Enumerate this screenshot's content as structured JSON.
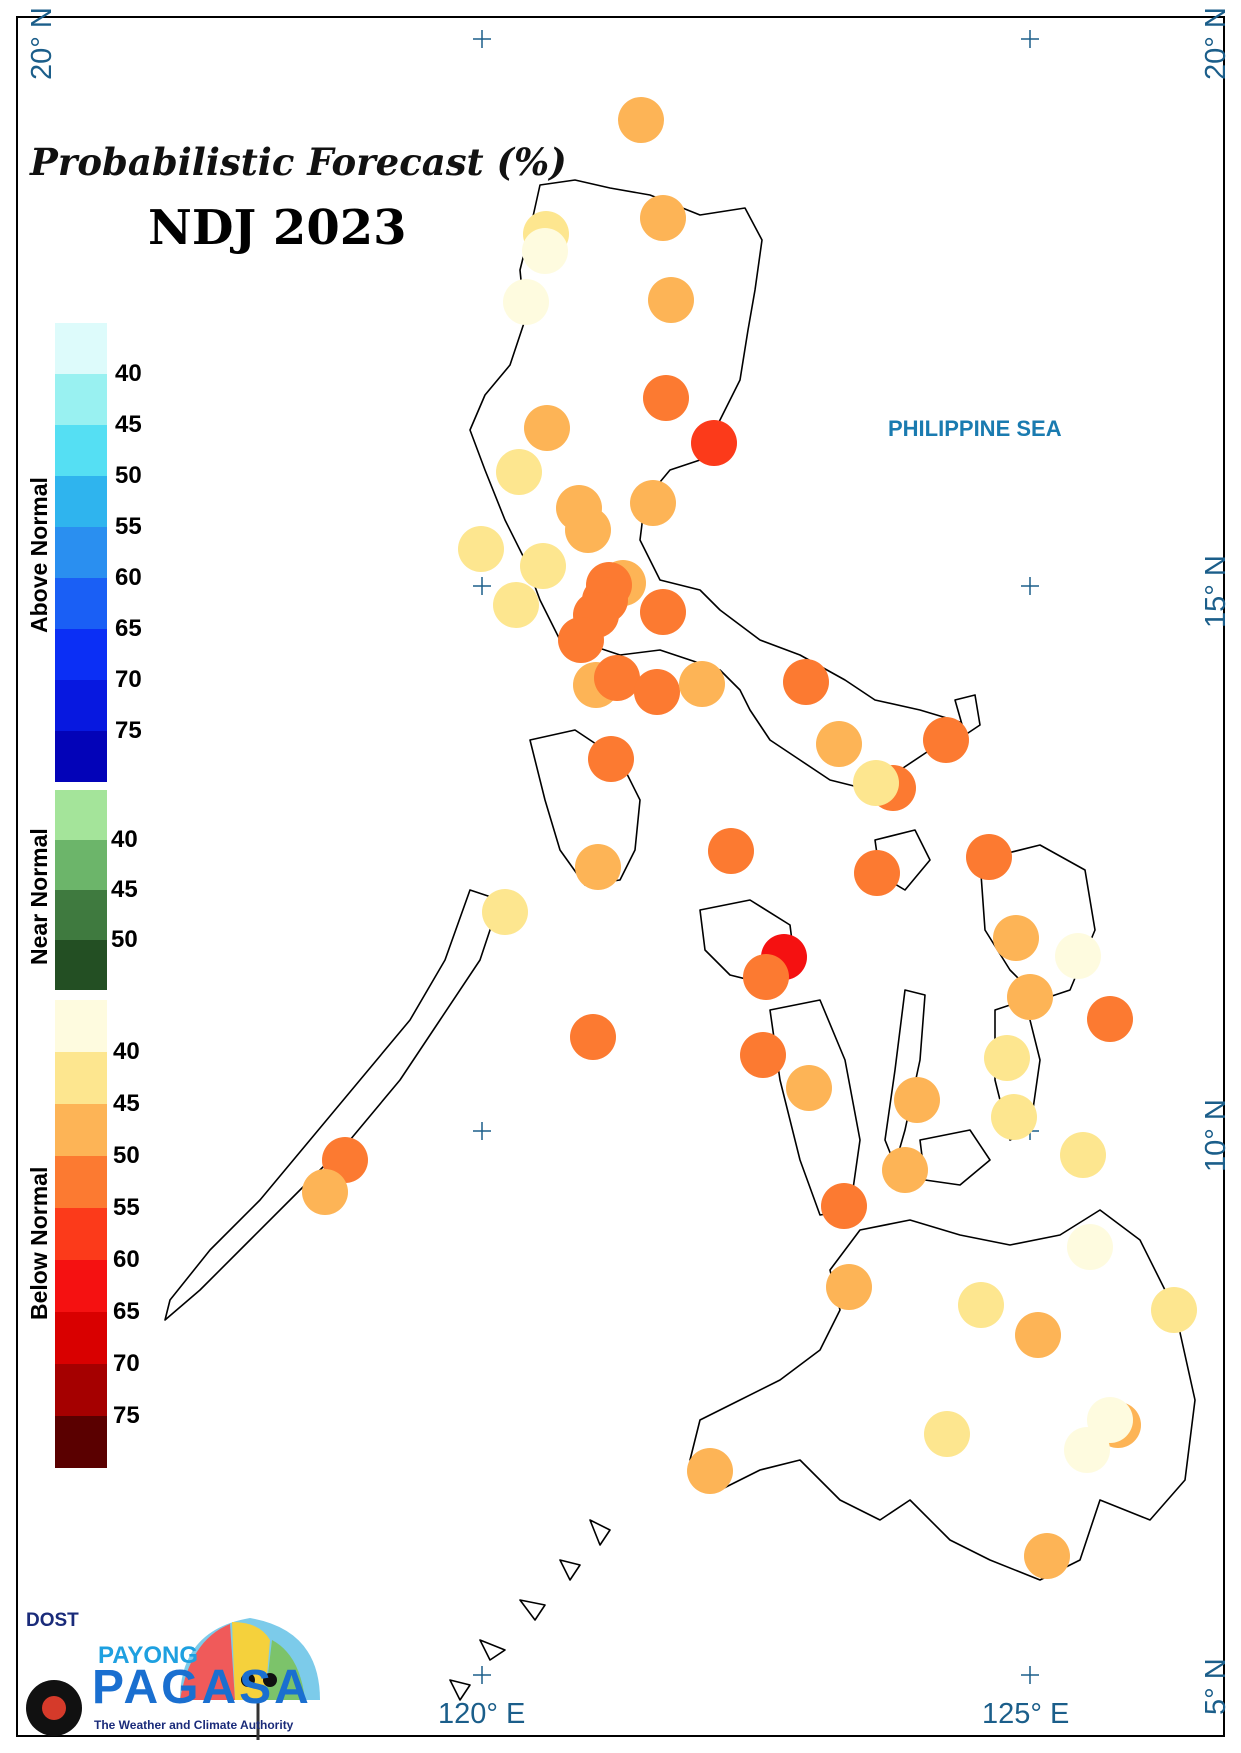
{
  "title": "Probabilistic Forecast (%)",
  "subtitle": "NDJ 2023",
  "sea_label": "PHILIPPINE SEA",
  "coords": {
    "top_left": "20° N",
    "top_right": "20° N",
    "right_15": "15° N",
    "right_10": "10° N",
    "right_5": "5° N",
    "bottom_120": "120° E",
    "bottom_125": "125° E"
  },
  "legend": {
    "above": {
      "label": "Above Normal",
      "ticks": [
        "40",
        "45",
        "50",
        "55",
        "60",
        "65",
        "70",
        "75"
      ],
      "colors": [
        "#ddfbfb",
        "#99f1f1",
        "#55dff3",
        "#2fb4ee",
        "#2a8ff0",
        "#1a5ff5",
        "#0b2ff5",
        "#0718e0",
        "#0303b8"
      ]
    },
    "near": {
      "label": "Near Normal",
      "ticks": [
        "40",
        "45",
        "50"
      ],
      "colors": [
        "#a4e49a",
        "#6cb56a",
        "#3f7a3f",
        "#234f23"
      ]
    },
    "below": {
      "label": "Below Normal",
      "ticks": [
        "40",
        "45",
        "50",
        "55",
        "60",
        "65",
        "70",
        "75"
      ],
      "colors": [
        "#fefbdf",
        "#fde68f",
        "#fdb456",
        "#fc7a31",
        "#fc3a1a",
        "#f51111",
        "#d90000",
        "#a50000",
        "#5a0000"
      ]
    }
  },
  "logo": {
    "dost": "DOST",
    "payong": "PAYONG",
    "pagasa": "PAGASA",
    "tagline": "The Weather and Climate Authority"
  },
  "station_categories": {
    "c0": "#fefbdf",
    "c1": "#fde68f",
    "c2": "#fdb456",
    "c3": "#fc7a31",
    "c4": "#fc3a1a",
    "c5": "#f51111"
  }
}
